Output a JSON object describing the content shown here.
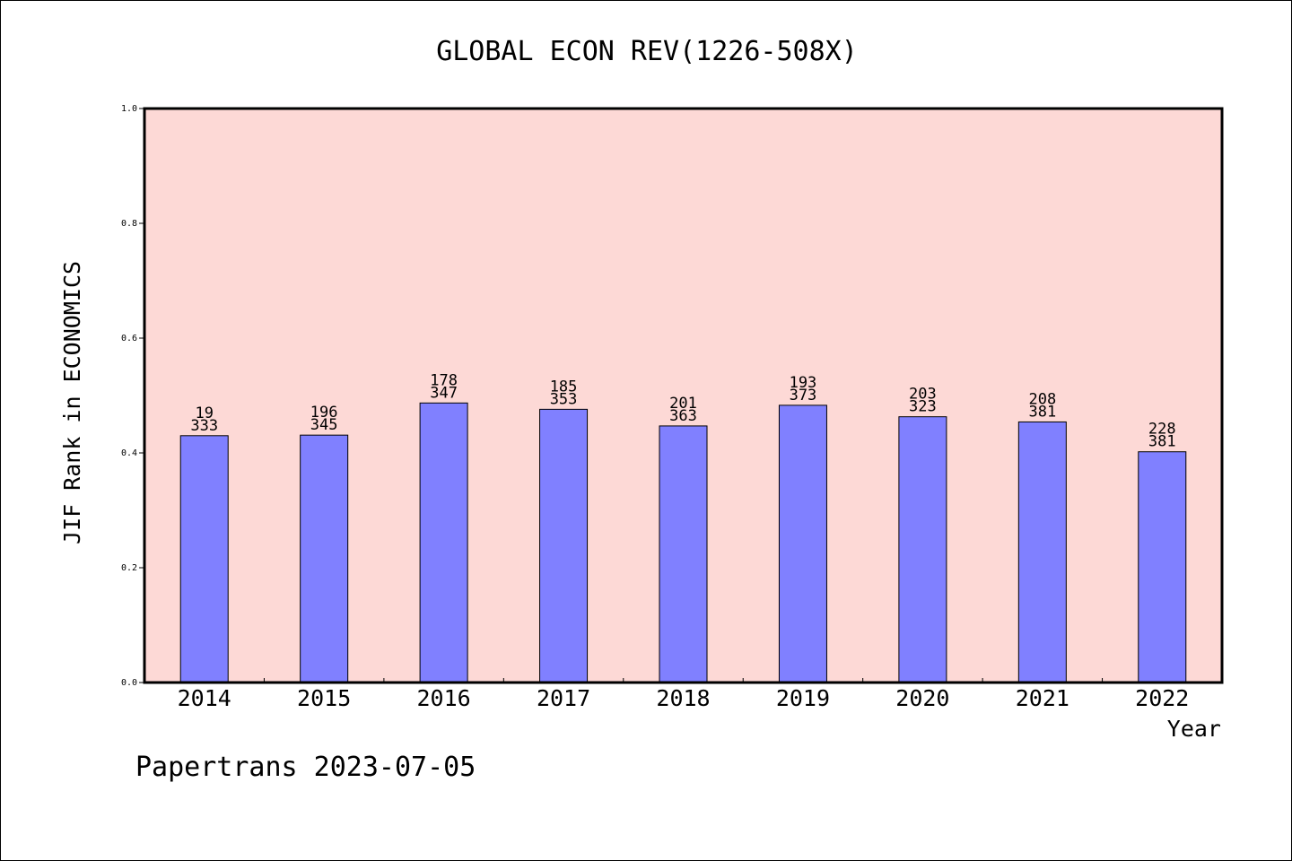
{
  "colors": {
    "plot_background": "#fdd9d6",
    "bar_fill": "#8080ff",
    "bar_stroke": "#000000"
  },
  "footer_text": "Papertrans 2023-07-05",
  "chart_data": {
    "type": "bar",
    "title": "GLOBAL ECON REV(1226-508X)",
    "xlabel": "Year",
    "ylabel": "JIF Rank in ECONOMICS",
    "ylim": [
      0,
      1.0
    ],
    "yticks": [
      "0.0",
      "0.2",
      "0.4",
      "0.6",
      "0.8",
      "1.0"
    ],
    "grid": false,
    "categories": [
      "2014",
      "2015",
      "2016",
      "2017",
      "2018",
      "2019",
      "2020",
      "2021",
      "2022"
    ],
    "values": [
      0.43,
      0.431,
      0.487,
      0.476,
      0.447,
      0.483,
      0.463,
      0.454,
      0.402
    ],
    "labels_rank": [
      "19",
      "196",
      "178",
      "185",
      "201",
      "193",
      "203",
      "208",
      "228"
    ],
    "labels_total": [
      "333",
      "345",
      "347",
      "353",
      "363",
      "373",
      "323",
      "381",
      "381"
    ]
  }
}
